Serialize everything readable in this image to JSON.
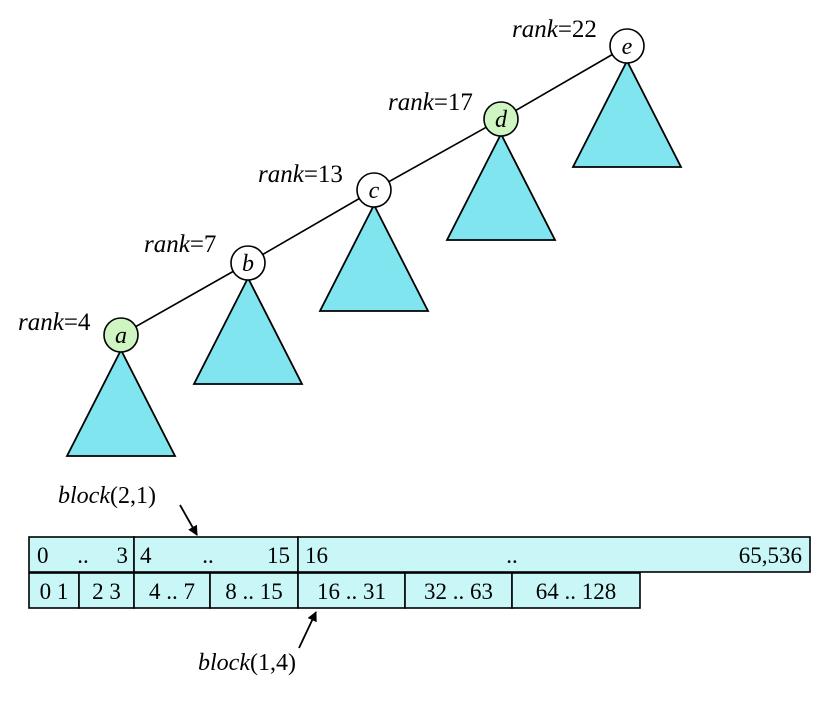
{
  "colors": {
    "subtree_fill": "#80E5EE",
    "cell_fill": "#C9F6F6",
    "highlight_node": "#CFF5C3",
    "plain_node": "#ffffff",
    "stroke": "#000000"
  },
  "path_nodes": [
    {
      "letter": "a",
      "rank_word": "rank",
      "rank_value": "=4",
      "highlighted": true
    },
    {
      "letter": "b",
      "rank_word": "rank",
      "rank_value": "=7",
      "highlighted": false
    },
    {
      "letter": "c",
      "rank_word": "rank",
      "rank_value": "=13",
      "highlighted": false
    },
    {
      "letter": "d",
      "rank_word": "rank",
      "rank_value": "=17",
      "highlighted": true
    },
    {
      "letter": "e",
      "rank_word": "rank",
      "rank_value": "=22",
      "highlighted": false
    }
  ],
  "block_rows": [
    {
      "cells": [
        {
          "segments": [
            "0",
            "..",
            "3"
          ]
        },
        {
          "segments": [
            "4",
            "..",
            "15"
          ]
        },
        {
          "segments": [
            "16",
            "..",
            "65,536"
          ]
        }
      ]
    },
    {
      "cells": [
        {
          "segments": [
            "0 1"
          ]
        },
        {
          "segments": [
            "2 3"
          ]
        },
        {
          "segments": [
            "4 .. 7"
          ]
        },
        {
          "segments": [
            "8 .. 15"
          ]
        },
        {
          "segments": [
            "16 .. 31"
          ]
        },
        {
          "segments": [
            "32 .. 63"
          ]
        },
        {
          "segments": [
            "64 .. 128"
          ]
        }
      ]
    }
  ],
  "pointers": [
    {
      "word": "block",
      "args": "(2,1)"
    },
    {
      "word": "block",
      "args": "(1,4)"
    }
  ]
}
